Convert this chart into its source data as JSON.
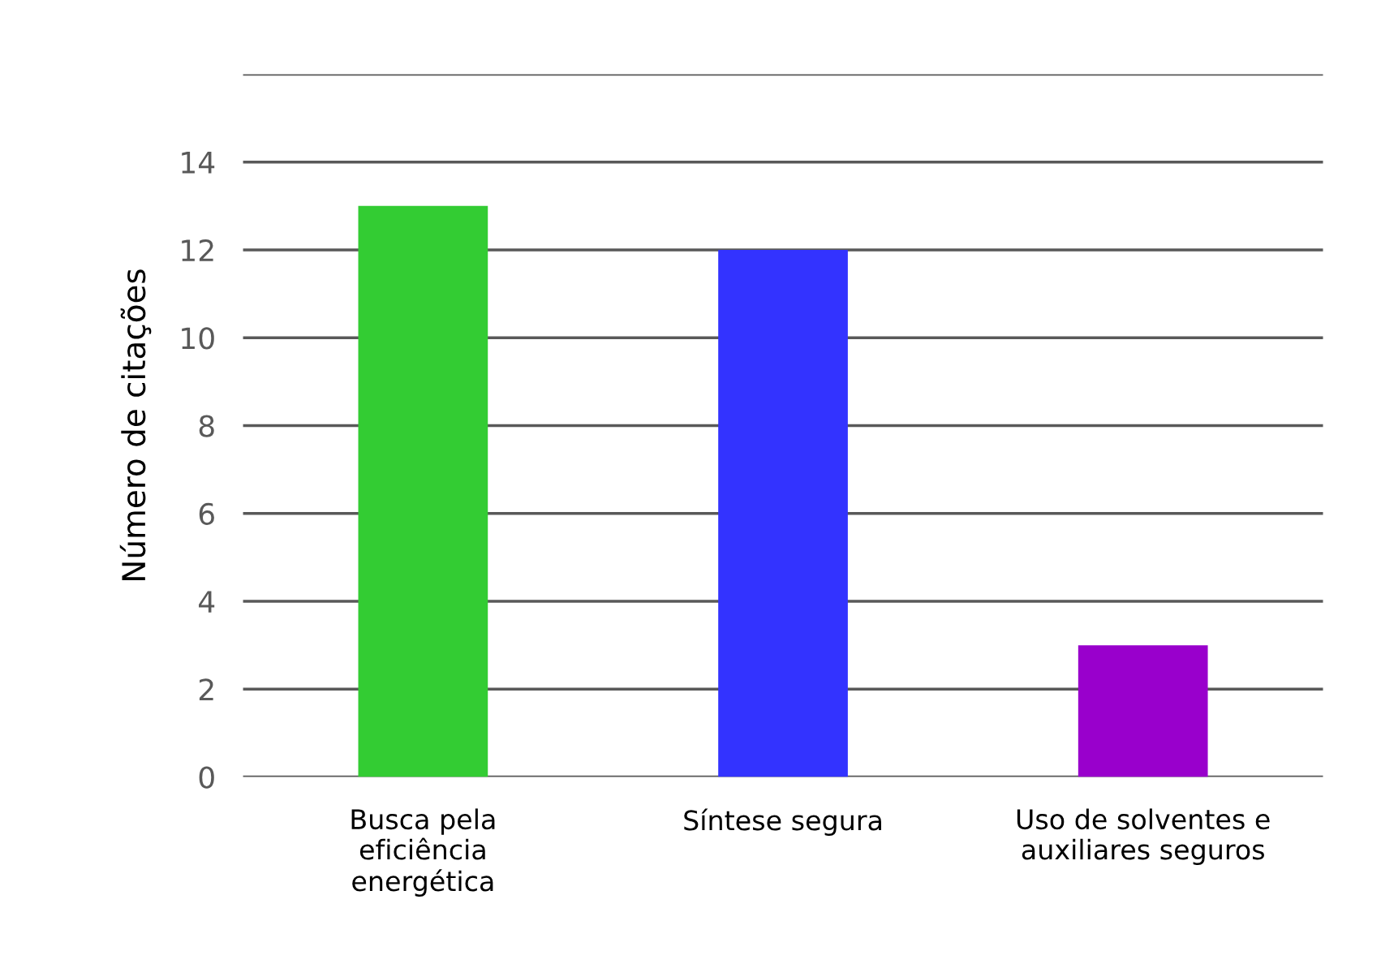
{
  "chart_data": {
    "type": "bar",
    "ylabel": "Número de citações",
    "categories": [
      "Busca pela\neficiência\nenergética",
      "Síntese segura",
      "Uso de solventes e\nauxiliares seguros"
    ],
    "values": [
      13,
      12,
      3
    ],
    "colors": [
      "#33cc33",
      "#3333ff",
      "#9900cc"
    ],
    "ylim": [
      0,
      16
    ],
    "yticks": [
      0,
      2,
      4,
      6,
      8,
      10,
      12,
      14,
      {
        "value": 16,
        "label": null
      }
    ],
    "grid": "y",
    "legend": false
  }
}
